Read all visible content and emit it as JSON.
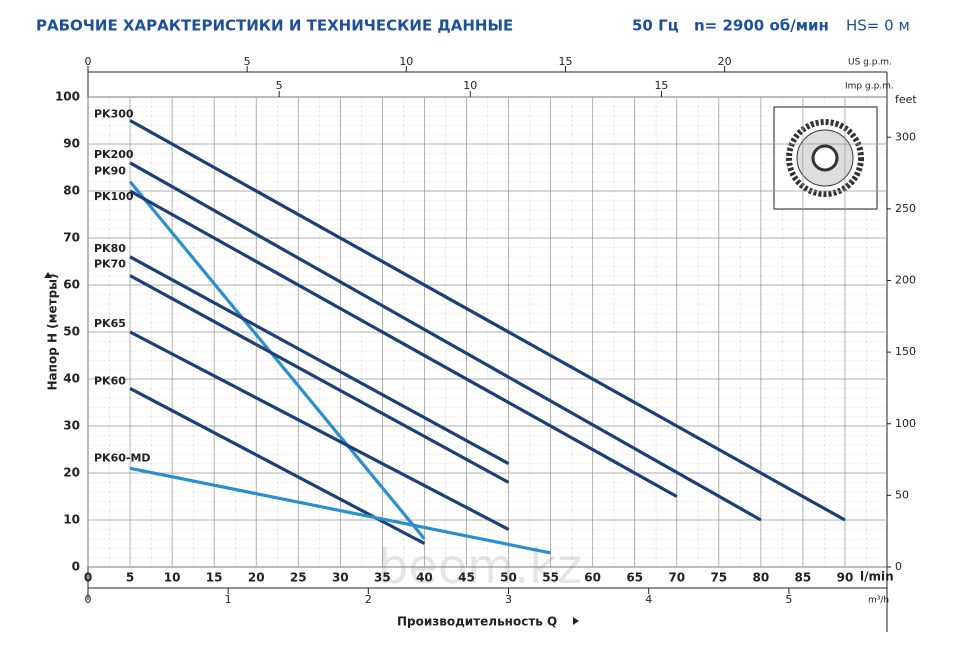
{
  "chart_data": {
    "type": "line",
    "title": "РАБОЧИЕ ХАРАКТЕРИСТИКИ И ТЕХНИЧЕСКИЕ ДАННЫЕ",
    "frequency": "50 Гц",
    "speed": "n= 2900 об/мин",
    "suction_head": "HS= 0 м",
    "ylabel": "Напор H (метры)",
    "xlabel": "Производительность Q",
    "xunit": "l/min",
    "xlim": [
      0,
      95
    ],
    "xticks": [
      0,
      5,
      10,
      15,
      20,
      25,
      30,
      35,
      40,
      45,
      50,
      55,
      60,
      65,
      70,
      75,
      80,
      85,
      90
    ],
    "ylim": [
      0,
      100
    ],
    "yticks": [
      0,
      10,
      20,
      30,
      40,
      50,
      60,
      70,
      80,
      90,
      100
    ],
    "y2label": "feet",
    "y2lim": [
      0,
      328.1
    ],
    "y2ticks": [
      0,
      50,
      100,
      150,
      200,
      250,
      300
    ],
    "top_axis_us": {
      "label": "US g.p.m.",
      "lim": [
        0,
        25.1
      ],
      "ticks": [
        0,
        5,
        10,
        15,
        20
      ]
    },
    "top_axis_imp": {
      "label": "Imp g.p.m.",
      "lim": [
        0,
        20.9
      ],
      "ticks": [
        5,
        10,
        15
      ]
    },
    "bottom_axis_m3h": {
      "label": "m³/h",
      "lim": [
        0,
        5.7
      ],
      "ticks": [
        0,
        1,
        2,
        3,
        4,
        5
      ]
    },
    "grid": true,
    "watermark": "beom.kz",
    "series": [
      {
        "name": "PK300",
        "color": "#1c3f78",
        "x": [
          5,
          90
        ],
        "values": [
          95,
          10
        ]
      },
      {
        "name": "PK200",
        "color": "#1c3f78",
        "x": [
          5,
          80
        ],
        "values": [
          86,
          10
        ]
      },
      {
        "name": "PK90",
        "color": "#2a8fcf",
        "x": [
          5,
          40
        ],
        "values": [
          82,
          6
        ]
      },
      {
        "name": "PK100",
        "color": "#1c3f78",
        "x": [
          5,
          70
        ],
        "values": [
          80,
          15
        ]
      },
      {
        "name": "PK80",
        "color": "#1c3f78",
        "x": [
          5,
          50
        ],
        "values": [
          66,
          22
        ]
      },
      {
        "name": "PK70",
        "color": "#1c3f78",
        "x": [
          5,
          50
        ],
        "values": [
          62,
          18
        ]
      },
      {
        "name": "PK65",
        "color": "#1c3f78",
        "x": [
          5,
          50
        ],
        "values": [
          50,
          8
        ]
      },
      {
        "name": "PK60",
        "color": "#1c3f78",
        "x": [
          5,
          40
        ],
        "values": [
          38,
          5
        ]
      },
      {
        "name": "PK60-MD",
        "color": "#2a8fcf",
        "x": [
          5,
          55
        ],
        "values": [
          21,
          3
        ]
      }
    ]
  }
}
